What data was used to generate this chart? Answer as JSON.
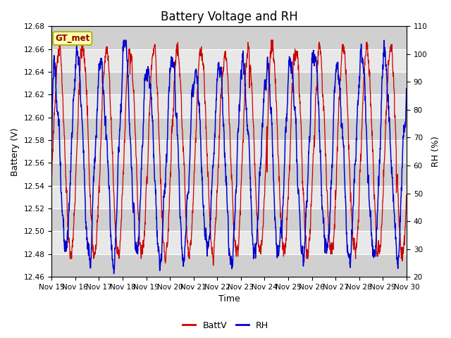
{
  "title": "Battery Voltage and RH",
  "xlabel": "Time",
  "ylabel_left": "Battery (V)",
  "ylabel_right": "RH (%)",
  "battv_ylim": [
    12.46,
    12.68
  ],
  "rh_ylim": [
    20,
    110
  ],
  "battv_yticks": [
    12.46,
    12.48,
    12.5,
    12.52,
    12.54,
    12.56,
    12.58,
    12.6,
    12.62,
    12.64,
    12.66,
    12.68
  ],
  "rh_yticks": [
    20,
    30,
    40,
    50,
    60,
    70,
    80,
    90,
    100,
    110
  ],
  "x_tick_labels": [
    "Nov 15",
    "Nov 16",
    "Nov 17",
    "Nov 18",
    "Nov 19",
    "Nov 20",
    "Nov 21",
    "Nov 22",
    "Nov 23",
    "Nov 24",
    "Nov 25",
    "Nov 26",
    "Nov 27",
    "Nov 28",
    "Nov 29",
    "Nov 30"
  ],
  "battv_color": "#cc0000",
  "rh_color": "#0000cc",
  "bg_color": "#ffffff",
  "plot_bg_color": "#e8e8e8",
  "alt_band_color": "#d0d0d0",
  "legend_label_battv": "BattV",
  "legend_label_rh": "RH",
  "station_label": "GT_met",
  "station_label_bg": "#ffffaa",
  "station_label_border": "#aaa800",
  "title_fontsize": 12,
  "axis_fontsize": 9,
  "tick_fontsize": 7.5,
  "legend_fontsize": 9,
  "seed": 12345,
  "n_days": 15,
  "n_points_per_day": 144
}
